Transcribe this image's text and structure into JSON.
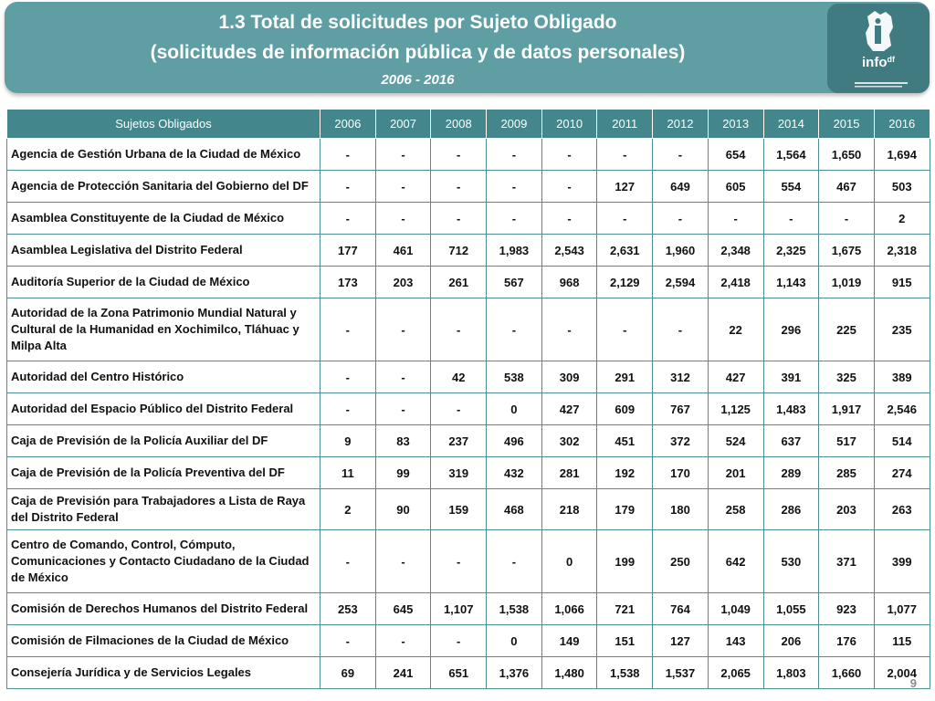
{
  "header": {
    "title_line1": "1.3 Total de solicitudes por Sujeto Obligado",
    "title_line2": "(solicitudes de información pública y de datos personales)",
    "subtitle": "2006 - 2016",
    "logo_text": "info",
    "logo_subtext": "df"
  },
  "colors": {
    "banner": "#5f9ea3",
    "header_row": "#43868b",
    "logo_bg": "#3f7b80",
    "border": "#4f8f94"
  },
  "table": {
    "header_label": "Sujetos Obligados",
    "years": [
      "2006",
      "2007",
      "2008",
      "2009",
      "2010",
      "2011",
      "2012",
      "2013",
      "2014",
      "2015",
      "2016"
    ],
    "rows": [
      {
        "name": "Agencia de Gestión Urbana de la Ciudad de México",
        "values": [
          "-",
          "-",
          "-",
          "-",
          "-",
          "-",
          "-",
          "654",
          "1,564",
          "1,650",
          "1,694"
        ]
      },
      {
        "name": "Agencia de Protección Sanitaria del Gobierno del DF",
        "values": [
          "-",
          "-",
          "-",
          "-",
          "-",
          "127",
          "649",
          "605",
          "554",
          "467",
          "503"
        ]
      },
      {
        "name": "Asamblea Constituyente de la Ciudad de México",
        "values": [
          "-",
          "-",
          "-",
          "-",
          "-",
          "-",
          "-",
          "-",
          "-",
          "-",
          "2"
        ]
      },
      {
        "name": "Asamblea Legislativa del Distrito Federal",
        "values": [
          "177",
          "461",
          "712",
          "1,983",
          "2,543",
          "2,631",
          "1,960",
          "2,348",
          "2,325",
          "1,675",
          "2,318"
        ]
      },
      {
        "name": "Auditoría Superior de la Ciudad de México",
        "values": [
          "173",
          "203",
          "261",
          "567",
          "968",
          "2,129",
          "2,594",
          "2,418",
          "1,143",
          "1,019",
          "915"
        ]
      },
      {
        "name": "Autoridad de la Zona Patrimonio Mundial Natural y Cultural de la Humanidad en Xochimilco, Tláhuac y Milpa Alta",
        "values": [
          "-",
          "-",
          "-",
          "-",
          "-",
          "-",
          "-",
          "22",
          "296",
          "225",
          "235"
        ]
      },
      {
        "name": "Autoridad del Centro Histórico",
        "values": [
          "-",
          "-",
          "42",
          "538",
          "309",
          "291",
          "312",
          "427",
          "391",
          "325",
          "389"
        ]
      },
      {
        "name": "Autoridad del Espacio Público del Distrito Federal",
        "values": [
          "-",
          "-",
          "-",
          "0",
          "427",
          "609",
          "767",
          "1,125",
          "1,483",
          "1,917",
          "2,546"
        ]
      },
      {
        "name": "Caja de Previsión de la Policía Auxiliar del DF",
        "values": [
          "9",
          "83",
          "237",
          "496",
          "302",
          "451",
          "372",
          "524",
          "637",
          "517",
          "514"
        ]
      },
      {
        "name": "Caja de Previsión de la Policía Preventiva del DF",
        "values": [
          "11",
          "99",
          "319",
          "432",
          "281",
          "192",
          "170",
          "201",
          "289",
          "285",
          "274"
        ]
      },
      {
        "name": "Caja de Previsión para Trabajadores a Lista de Raya del Distrito Federal",
        "values": [
          "2",
          "90",
          "159",
          "468",
          "218",
          "179",
          "180",
          "258",
          "286",
          "203",
          "263"
        ]
      },
      {
        "name": "Centro de Comando, Control, Cómputo, Comunicaciones y Contacto Ciudadano de la Ciudad de México",
        "values": [
          "-",
          "-",
          "-",
          "-",
          "0",
          "199",
          "250",
          "642",
          "530",
          "371",
          "399"
        ]
      },
      {
        "name": "Comisión de Derechos Humanos del Distrito Federal",
        "values": [
          "253",
          "645",
          "1,107",
          "1,538",
          "1,066",
          "721",
          "764",
          "1,049",
          "1,055",
          "923",
          "1,077"
        ]
      },
      {
        "name": "Comisión de Filmaciones de la Ciudad de México",
        "values": [
          "-",
          "-",
          "-",
          "0",
          "149",
          "151",
          "127",
          "143",
          "206",
          "176",
          "115"
        ]
      },
      {
        "name": "Consejería Jurídica y de Servicios Legales",
        "values": [
          "69",
          "241",
          "651",
          "1,376",
          "1,480",
          "1,538",
          "1,537",
          "2,065",
          "1,803",
          "1,660",
          "2,004"
        ]
      }
    ]
  },
  "footer": {
    "page_number": "9"
  }
}
